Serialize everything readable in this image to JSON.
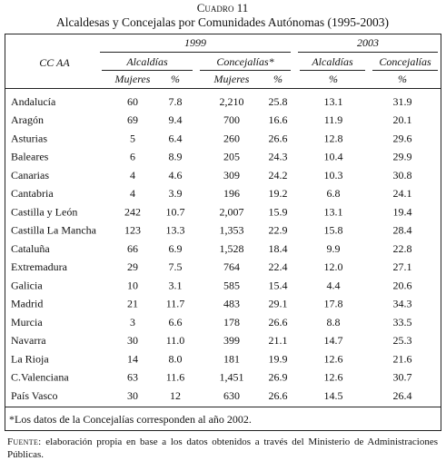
{
  "header": {
    "label": "Cuadro 11",
    "title": "Alcaldesas y Concejalas por Comunidades Autónomas (1995-2003)"
  },
  "table": {
    "row_header": "CC AA",
    "years": [
      "1999",
      "2003"
    ],
    "groups": [
      "Alcaldías",
      "Concejalías*",
      "Alcaldías",
      "Concejalías"
    ],
    "columns": [
      "Mujeres",
      "%",
      "Mujeres",
      "%",
      "%",
      "%"
    ],
    "rows": [
      [
        "Andalucía",
        "60",
        "7.8",
        "2,210",
        "25.8",
        "13.1",
        "31.9"
      ],
      [
        "Aragón",
        "69",
        "9.4",
        "700",
        "16.6",
        "11.9",
        "20.1"
      ],
      [
        "Asturias",
        "5",
        "6.4",
        "260",
        "26.6",
        "12.8",
        "29.6"
      ],
      [
        "Baleares",
        "6",
        "8.9",
        "205",
        "24.3",
        "10.4",
        "29.9"
      ],
      [
        "Canarias",
        "4",
        "4.6",
        "309",
        "24.2",
        "10.3",
        "30.8"
      ],
      [
        "Cantabria",
        "4",
        "3.9",
        "196",
        "19.2",
        "6.8",
        "24.1"
      ],
      [
        "Castilla y León",
        "242",
        "10.7",
        "2,007",
        "15.9",
        "13.1",
        "19.4"
      ],
      [
        "Castilla La Mancha",
        "123",
        "13.3",
        "1,353",
        "22.9",
        "15.8",
        "28.4"
      ],
      [
        "Cataluña",
        "66",
        "6.9",
        "1,528",
        "18.4",
        "9.9",
        "22.8"
      ],
      [
        "Extremadura",
        "29",
        "7.5",
        "764",
        "22.4",
        "12.0",
        "27.1"
      ],
      [
        "Galicia",
        "10",
        "3.1",
        "585",
        "15.4",
        "4.4",
        "20.6"
      ],
      [
        "Madrid",
        "21",
        "11.7",
        "483",
        "29.1",
        "17.8",
        "34.3"
      ],
      [
        "Murcia",
        "3",
        "6.6",
        "178",
        "26.6",
        "8.8",
        "33.5"
      ],
      [
        "Navarra",
        "30",
        "11.0",
        "399",
        "21.1",
        "14.7",
        "25.3"
      ],
      [
        "La Rioja",
        "14",
        "8.0",
        "181",
        "19.9",
        "12.6",
        "21.6"
      ],
      [
        "C.Valenciana",
        "63",
        "11.6",
        "1,451",
        "26.9",
        "12.6",
        "30.7"
      ],
      [
        "País Vasco",
        "30",
        "12",
        "630",
        "26.6",
        "14.5",
        "26.4"
      ]
    ],
    "footnote": "*Los datos de la Concejalías corresponden al año 2002."
  },
  "source": {
    "label": "Fuente:",
    "text": "elaboración propia en base a los datos obtenidos a través del Ministerio de Administraciones Públicas."
  }
}
